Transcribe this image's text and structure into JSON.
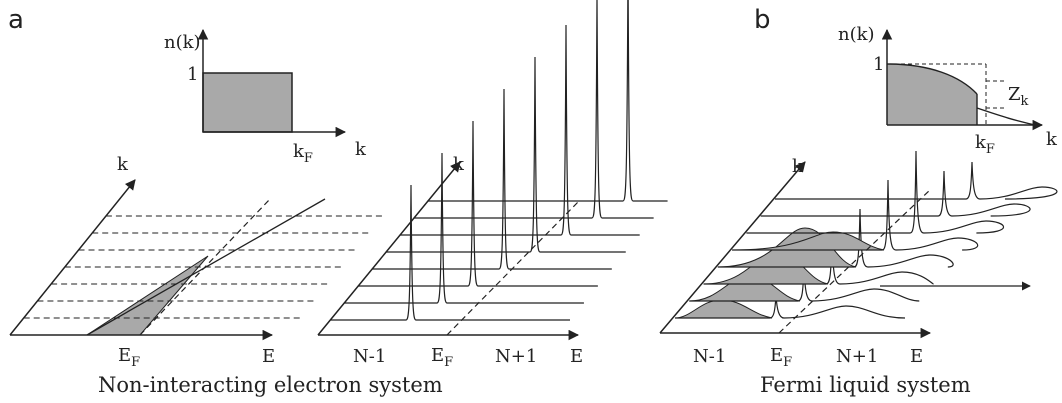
{
  "panel_a": {
    "letter": "a",
    "caption": "Non-interacting electron system",
    "inset": {
      "y_label": "n(k)",
      "y_tick": "1",
      "x_label": "k",
      "x_tick_main": "k",
      "x_tick_sub": "F"
    },
    "dispersion": {
      "k_label": "k",
      "ef_main": "E",
      "ef_sub": "F",
      "e_label": "E"
    },
    "spectra": {
      "k_label": "k",
      "left_label": "N-1",
      "ef_main": "E",
      "ef_sub": "F",
      "right_label": "N+1",
      "e_label": "E"
    }
  },
  "panel_b": {
    "letter": "b",
    "caption": "Fermi liquid system",
    "inset": {
      "y_label": "n(k)",
      "y_tick": "1",
      "x_label": "k",
      "x_tick_main": "k",
      "x_tick_sub": "F",
      "z_main": "Z",
      "z_sub": "k"
    },
    "spectra": {
      "k_label": "k",
      "left_label": "N-1",
      "ef_main": "E",
      "ef_sub": "F",
      "right_label": "N+1",
      "e_label": "E"
    }
  },
  "colors": {
    "ink": "#222222",
    "fill": "#a9a9a9"
  }
}
